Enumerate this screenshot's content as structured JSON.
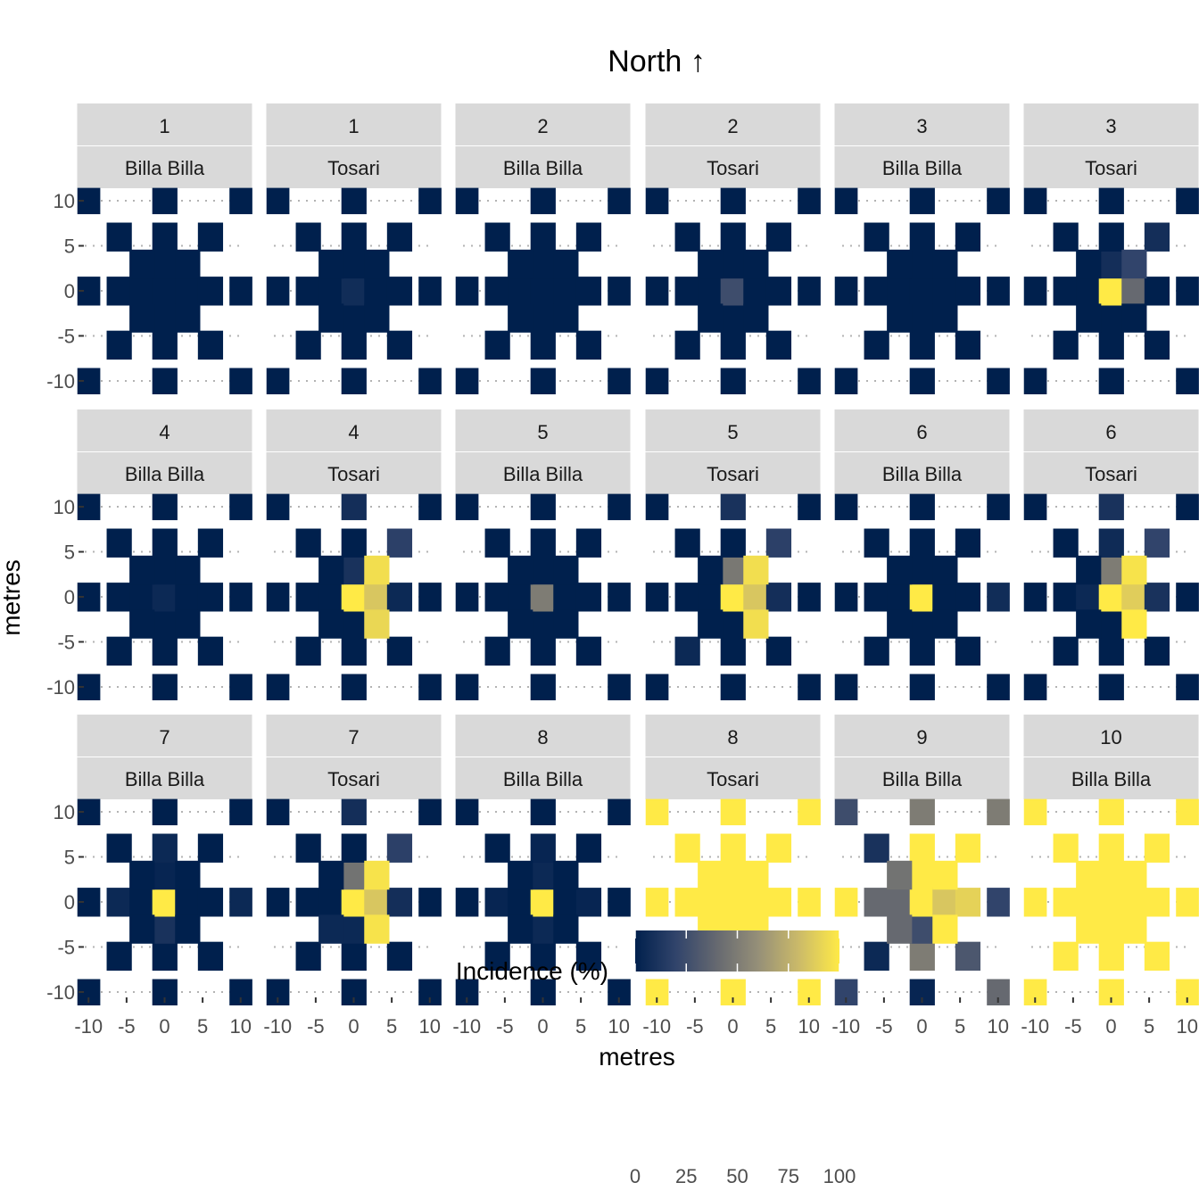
{
  "chart_data": {
    "type": "heatmap",
    "title": "North ↑",
    "xlabel": "metres",
    "ylabel": "metres",
    "x_ticks": [
      -10,
      -5,
      0,
      5,
      10
    ],
    "y_ticks": [
      -10,
      -5,
      0,
      5,
      10
    ],
    "xlim": [
      -10.5,
      10.5
    ],
    "ylim": [
      -10.5,
      10.5
    ],
    "grid": "dotted",
    "legend": {
      "title": "Incidence (%)",
      "ticks": [
        0,
        25,
        50,
        75,
        100
      ],
      "range": [
        0,
        100
      ],
      "colors": [
        "#00204D",
        "#31446B",
        "#666970",
        "#958F78",
        "#CBBA69",
        "#FFEA46"
      ],
      "placement": "bottom"
    },
    "panels": [
      {
        "strip1": "1",
        "strip2": "Billa Billa",
        "overrides": []
      },
      {
        "strip1": "1",
        "strip2": "Tosari",
        "overrides": [
          [
            0,
            0,
            7
          ]
        ]
      },
      {
        "strip1": "2",
        "strip2": "Billa Billa",
        "overrides": []
      },
      {
        "strip1": "2",
        "strip2": "Tosari",
        "overrides": [
          [
            0,
            0,
            25
          ]
        ]
      },
      {
        "strip1": "3",
        "strip2": "Billa Billa",
        "overrides": []
      },
      {
        "strip1": "3",
        "strip2": "Tosari",
        "overrides": [
          [
            0,
            0,
            100
          ],
          [
            3,
            0,
            40
          ],
          [
            3,
            3,
            20
          ],
          [
            0,
            3,
            8
          ],
          [
            6,
            6,
            8
          ]
        ]
      },
      {
        "strip1": "4",
        "strip2": "Billa Billa",
        "overrides": [
          [
            0,
            0,
            5
          ]
        ]
      },
      {
        "strip1": "4",
        "strip2": "Tosari",
        "overrides": [
          [
            0,
            0,
            100
          ],
          [
            3,
            0,
            85
          ],
          [
            3,
            3,
            95
          ],
          [
            3,
            -3,
            92
          ],
          [
            0,
            3,
            10
          ],
          [
            0,
            10,
            8
          ],
          [
            6,
            6,
            18
          ],
          [
            6,
            0,
            5
          ]
        ]
      },
      {
        "strip1": "5",
        "strip2": "Billa Billa",
        "overrides": [
          [
            0,
            0,
            50
          ]
        ]
      },
      {
        "strip1": "5",
        "strip2": "Tosari",
        "overrides": [
          [
            0,
            0,
            100
          ],
          [
            3,
            0,
            85
          ],
          [
            3,
            3,
            95
          ],
          [
            3,
            -3,
            95
          ],
          [
            0,
            3,
            48
          ],
          [
            0,
            10,
            10
          ],
          [
            6,
            6,
            18
          ],
          [
            6,
            0,
            8
          ],
          [
            -6,
            -6,
            5
          ]
        ]
      },
      {
        "strip1": "6",
        "strip2": "Billa Billa",
        "overrides": [
          [
            0,
            0,
            100
          ],
          [
            10,
            0,
            7
          ]
        ]
      },
      {
        "strip1": "6",
        "strip2": "Tosari",
        "overrides": [
          [
            0,
            0,
            100
          ],
          [
            3,
            0,
            88
          ],
          [
            3,
            3,
            97
          ],
          [
            3,
            -3,
            100
          ],
          [
            0,
            3,
            50
          ],
          [
            0,
            10,
            10
          ],
          [
            0,
            6,
            6
          ],
          [
            6,
            6,
            20
          ],
          [
            6,
            0,
            10
          ],
          [
            -3,
            0,
            5
          ]
        ]
      },
      {
        "strip1": "7",
        "strip2": "Billa Billa",
        "overrides": [
          [
            0,
            0,
            100
          ],
          [
            0,
            6,
            5
          ],
          [
            0,
            -3,
            10
          ],
          [
            -6,
            0,
            5
          ],
          [
            10,
            0,
            5
          ],
          [
            0,
            3,
            3
          ]
        ]
      },
      {
        "strip1": "7",
        "strip2": "Tosari",
        "overrides": [
          [
            0,
            0,
            100
          ],
          [
            3,
            0,
            85
          ],
          [
            3,
            3,
            97
          ],
          [
            3,
            -3,
            97
          ],
          [
            0,
            3,
            45
          ],
          [
            0,
            10,
            8
          ],
          [
            6,
            6,
            18
          ],
          [
            6,
            0,
            8
          ],
          [
            -3,
            -3,
            5
          ],
          [
            0,
            -3,
            5
          ]
        ]
      },
      {
        "strip1": "8",
        "strip2": "Billa Billa",
        "overrides": [
          [
            0,
            0,
            100
          ],
          [
            0,
            3,
            5
          ],
          [
            0,
            -3,
            5
          ],
          [
            -6,
            0,
            3
          ],
          [
            6,
            0,
            3
          ],
          [
            0,
            6,
            3
          ]
        ]
      },
      {
        "strip1": "8",
        "strip2": "Tosari",
        "base": 100,
        "overrides": []
      },
      {
        "strip1": "9",
        "strip2": "Billa Billa",
        "base": 100,
        "overrides": [
          [
            -10,
            10,
            25
          ],
          [
            0,
            10,
            50
          ],
          [
            10,
            10,
            50
          ],
          [
            -6,
            6,
            10
          ],
          [
            -3,
            3,
            45
          ],
          [
            -3,
            0,
            40
          ],
          [
            -6,
            0,
            40
          ],
          [
            -3,
            -3,
            40
          ],
          [
            0,
            -3,
            25
          ],
          [
            3,
            0,
            85
          ],
          [
            6,
            0,
            90
          ],
          [
            10,
            0,
            20
          ],
          [
            0,
            -6,
            50
          ],
          [
            0,
            -10,
            3
          ],
          [
            6,
            -6,
            30
          ],
          [
            10,
            -10,
            40
          ],
          [
            -6,
            -6,
            5
          ],
          [
            -10,
            -10,
            20
          ]
        ]
      },
      {
        "strip1": "10",
        "strip2": "Billa Billa",
        "base": 100,
        "overrides": []
      }
    ]
  }
}
